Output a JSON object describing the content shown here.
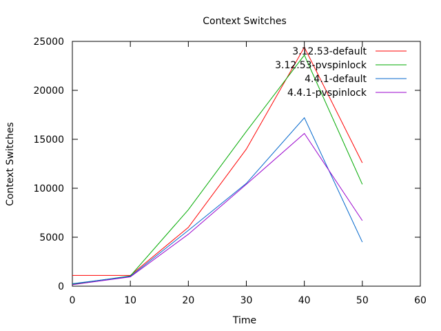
{
  "chart_data": {
    "type": "line",
    "title": "Context Switches",
    "xlabel": "Time",
    "ylabel": "Context Switches",
    "xlim": [
      0,
      60
    ],
    "ylim": [
      0,
      25000
    ],
    "xticks": [
      0,
      10,
      20,
      30,
      40,
      50,
      60
    ],
    "yticks": [
      0,
      5000,
      10000,
      15000,
      20000,
      25000
    ],
    "grid": false,
    "legend_position": "top-right",
    "x": [
      0,
      10,
      20,
      30,
      40,
      50
    ],
    "series": [
      {
        "name": "3.12.53-default",
        "color": "#ff0000",
        "values": [
          1100,
          1100,
          6000,
          14000,
          24400,
          12600
        ]
      },
      {
        "name": "3.12.53-pvspinlock",
        "color": "#00aa00",
        "values": [
          200,
          1050,
          7800,
          15800,
          23600,
          10400
        ]
      },
      {
        "name": "4.4.1-default",
        "color": "#0066cc",
        "values": [
          250,
          1000,
          5700,
          10500,
          17200,
          4500
        ]
      },
      {
        "name": "4.4.1-pvspinlock",
        "color": "#9900cc",
        "values": [
          150,
          950,
          5300,
          10400,
          15600,
          6700
        ]
      }
    ]
  }
}
